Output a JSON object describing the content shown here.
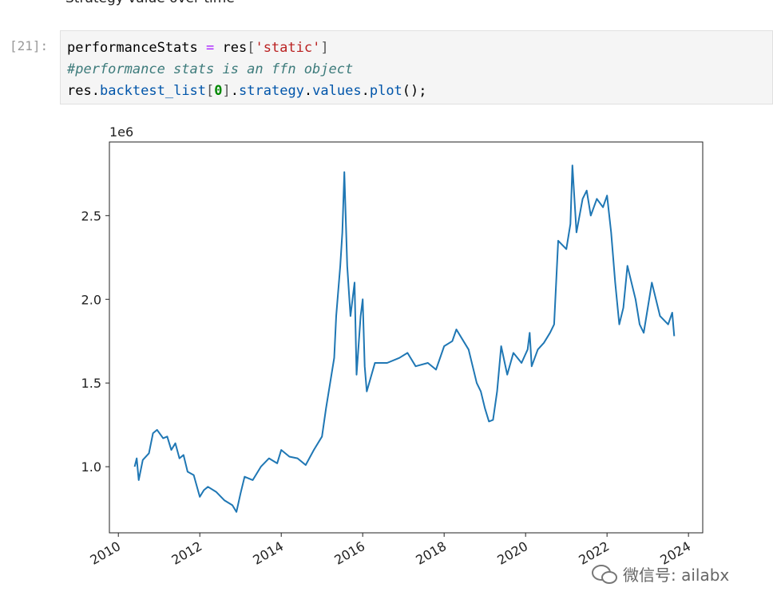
{
  "notebook": {
    "heading": "Strategy value over time",
    "prompt": "[21]:",
    "code": {
      "lines": [
        [
          "performanceStats ",
          "=",
          " res",
          "[",
          "'static'",
          "]"
        ],
        [
          "#performance stats is an ffn object"
        ],
        [
          "res",
          ".",
          "backtest_list",
          "[",
          "0",
          "]",
          ".",
          "strategy",
          ".",
          "values",
          ".",
          "plot",
          "();"
        ]
      ]
    },
    "watermark": "微信号: ailabx"
  },
  "chart_data": {
    "type": "line",
    "y_offset_label": "1e6",
    "xlim": [
      2009.78,
      2024.35
    ],
    "xticks": [
      2010,
      2012,
      2014,
      2016,
      2018,
      2020,
      2022,
      2024
    ],
    "ylim": [
      0.605,
      2.94
    ],
    "yticks": [
      {
        "value": 1,
        "label": "1.0"
      },
      1.5,
      {
        "value": 2,
        "label": "2.0"
      },
      2.5
    ],
    "grid": false,
    "series": [
      {
        "color": "#1f77b4",
        "x": [
          2010.4,
          2010.45,
          2010.5,
          2010.6,
          2010.75,
          2010.85,
          2010.95,
          2011.1,
          2011.2,
          2011.3,
          2011.4,
          2011.5,
          2011.6,
          2011.7,
          2011.85,
          2012.0,
          2012.1,
          2012.2,
          2012.4,
          2012.6,
          2012.8,
          2012.9,
          2013.0,
          2013.1,
          2013.3,
          2013.5,
          2013.7,
          2013.9,
          2014.0,
          2014.2,
          2014.4,
          2014.6,
          2014.8,
          2015.0,
          2015.1,
          2015.2,
          2015.3,
          2015.35,
          2015.45,
          2015.5,
          2015.55,
          2015.62,
          2015.7,
          2015.8,
          2015.85,
          2015.95,
          2016.0,
          2016.05,
          2016.1,
          2016.3,
          2016.6,
          2016.9,
          2017.1,
          2017.3,
          2017.6,
          2017.8,
          2018.0,
          2018.2,
          2018.3,
          2018.5,
          2018.6,
          2018.8,
          2018.9,
          2019.0,
          2019.1,
          2019.2,
          2019.3,
          2019.4,
          2019.55,
          2019.7,
          2019.9,
          2020.05,
          2020.1,
          2020.15,
          2020.3,
          2020.45,
          2020.6,
          2020.7,
          2020.8,
          2021.0,
          2021.1,
          2021.15,
          2021.25,
          2021.4,
          2021.5,
          2021.6,
          2021.75,
          2021.9,
          2022.0,
          2022.1,
          2022.2,
          2022.3,
          2022.4,
          2022.5,
          2022.7,
          2022.8,
          2022.9,
          2023.0,
          2023.1,
          2023.3,
          2023.5,
          2023.6,
          2023.65
        ],
        "values": [
          1.0,
          1.05,
          0.92,
          1.04,
          1.08,
          1.2,
          1.22,
          1.17,
          1.18,
          1.1,
          1.14,
          1.05,
          1.07,
          0.97,
          0.95,
          0.82,
          0.86,
          0.88,
          0.85,
          0.8,
          0.77,
          0.73,
          0.84,
          0.94,
          0.92,
          1.0,
          1.05,
          1.02,
          1.1,
          1.06,
          1.05,
          1.01,
          1.1,
          1.18,
          1.35,
          1.5,
          1.65,
          1.9,
          2.2,
          2.4,
          2.76,
          2.2,
          1.9,
          2.1,
          1.55,
          1.9,
          2.0,
          1.6,
          1.45,
          1.62,
          1.62,
          1.65,
          1.68,
          1.6,
          1.62,
          1.58,
          1.72,
          1.75,
          1.82,
          1.74,
          1.7,
          1.5,
          1.45,
          1.35,
          1.27,
          1.28,
          1.45,
          1.72,
          1.55,
          1.68,
          1.62,
          1.7,
          1.8,
          1.6,
          1.7,
          1.74,
          1.8,
          1.85,
          2.35,
          2.3,
          2.45,
          2.8,
          2.4,
          2.6,
          2.65,
          2.5,
          2.6,
          2.55,
          2.62,
          2.4,
          2.1,
          1.85,
          1.95,
          2.2,
          2.0,
          1.85,
          1.8,
          1.95,
          2.1,
          1.9,
          1.85,
          1.92,
          1.78
        ]
      }
    ]
  }
}
